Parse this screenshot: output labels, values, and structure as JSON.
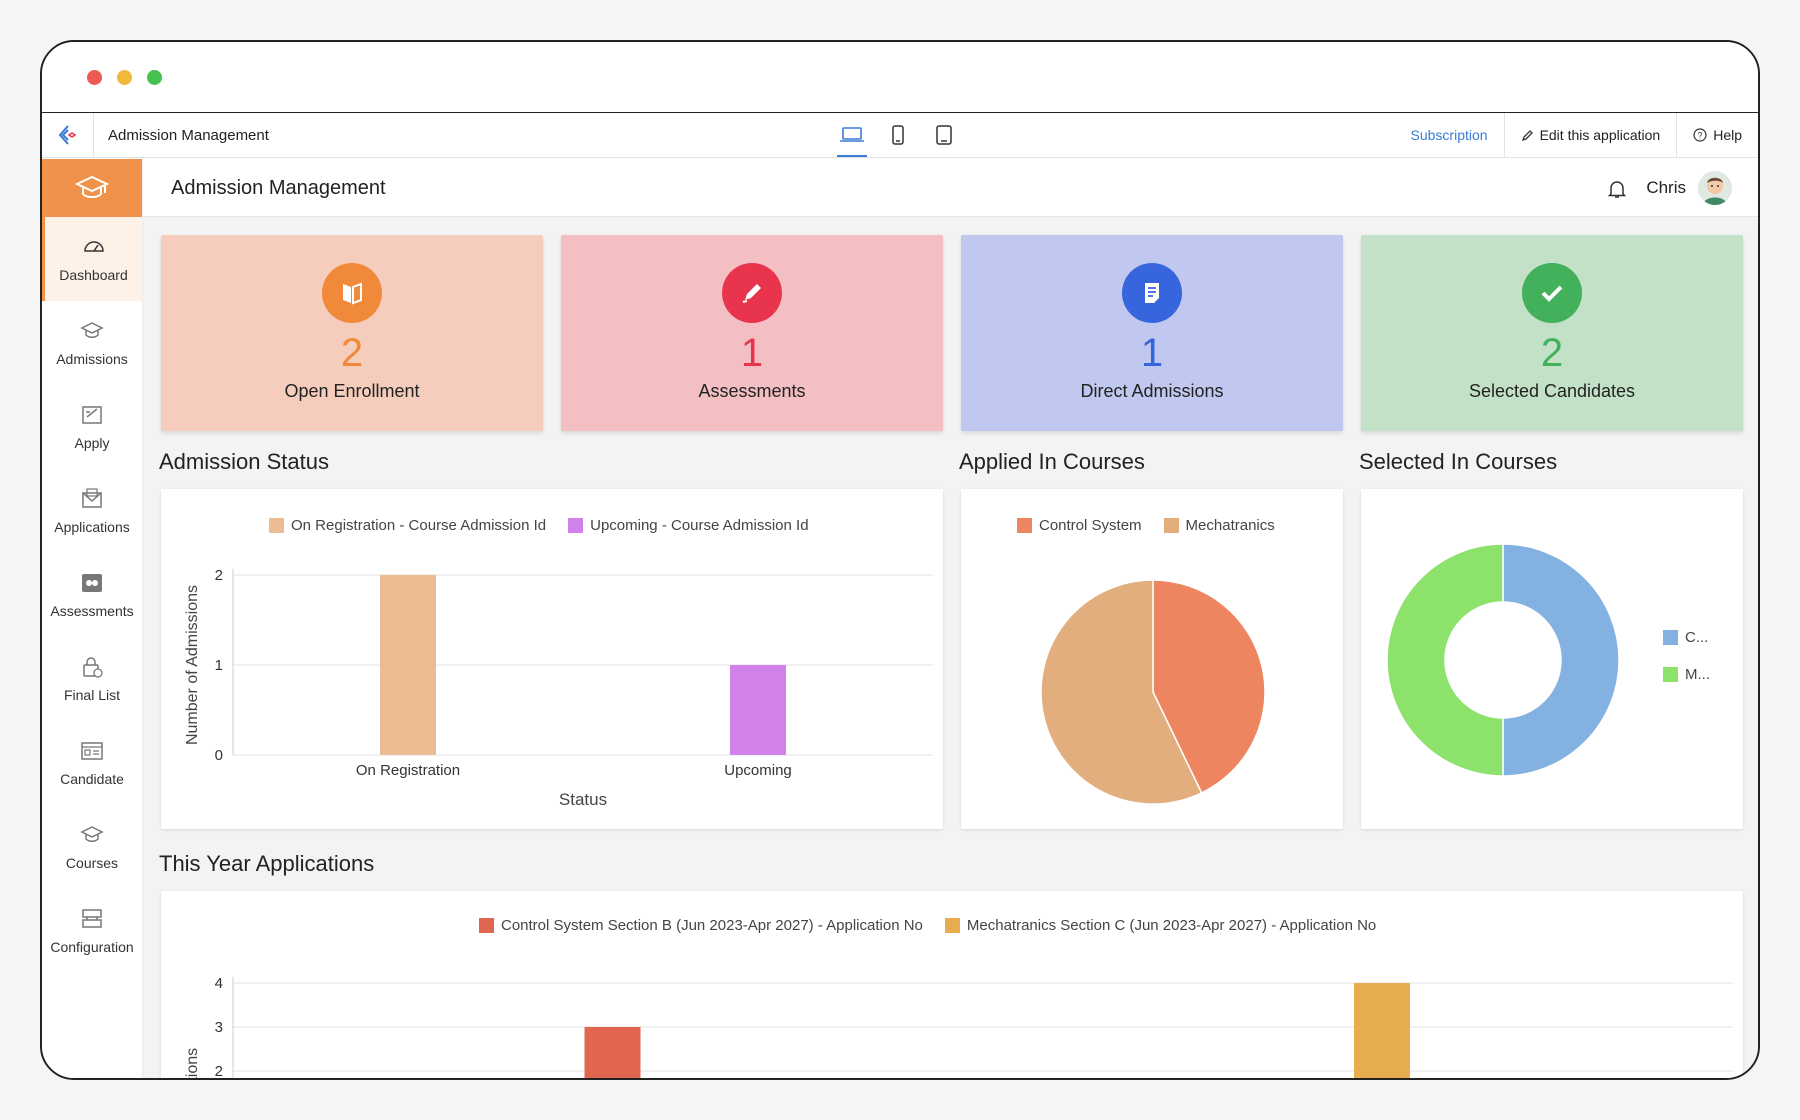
{
  "app": {
    "name": "Admission Management",
    "devices": [
      "laptop-icon",
      "phone-icon",
      "tablet-icon"
    ],
    "links": {
      "subscription": "Subscription",
      "edit": "Edit this application",
      "help": "Help"
    }
  },
  "header": {
    "title": "Admission Management",
    "user": "Chris"
  },
  "sidebar": {
    "items": [
      {
        "label": "Dashboard",
        "icon": "dashboard-icon",
        "active": true
      },
      {
        "label": "Admissions",
        "icon": "graduation-cap-icon"
      },
      {
        "label": "Apply",
        "icon": "apply-form-icon"
      },
      {
        "label": "Applications",
        "icon": "envelope-icon"
      },
      {
        "label": "Assessments",
        "icon": "assessments-icon"
      },
      {
        "label": "Final List",
        "icon": "lock-list-icon"
      },
      {
        "label": "Candidate",
        "icon": "candidate-card-icon"
      },
      {
        "label": "Courses",
        "icon": "courses-cap-icon"
      },
      {
        "label": "Configuration",
        "icon": "configuration-icon"
      }
    ]
  },
  "stats": [
    {
      "value": "2",
      "label": "Open Enrollment",
      "bg": "#f6cdbd",
      "accent": "#f08a3a",
      "icon": "book-open-icon"
    },
    {
      "value": "1",
      "label": "Assessments",
      "bg": "#f4bfc3",
      "accent": "#e8344d",
      "icon": "pen-icon"
    },
    {
      "value": "1",
      "label": "Direct Admissions",
      "bg": "#c0c8ef",
      "accent": "#3665dd",
      "icon": "document-icon"
    },
    {
      "value": "2",
      "label": "Selected Candidates",
      "bg": "#c3e1c6",
      "accent": "#43b05c",
      "icon": "check-icon"
    }
  ],
  "sections": {
    "admission_status": "Admission Status",
    "applied_courses": "Applied In Courses",
    "selected_courses": "Selected In Courses",
    "year_applications": "This Year Applications"
  },
  "chart_data": [
    {
      "type": "bar",
      "title": "Admission Status",
      "xlabel": "Status",
      "ylabel": "Number of Admissions",
      "categories": [
        "On Registration",
        "Upcoming"
      ],
      "ylim": [
        0,
        2
      ],
      "yticks": [
        "0",
        "1",
        "2"
      ],
      "series": [
        {
          "name": "On Registration - Course Admission Id",
          "color": "#ecbd92",
          "values": [
            2,
            null
          ]
        },
        {
          "name": "Upcoming - Course Admission Id",
          "color": "#d182e8",
          "values": [
            null,
            1
          ]
        }
      ]
    },
    {
      "type": "pie",
      "title": "Applied In Courses",
      "series": [
        {
          "name": "Control System",
          "color": "#ec8560",
          "value": 3
        },
        {
          "name": "Mechatranics",
          "color": "#e3ae7d",
          "value": 4
        }
      ]
    },
    {
      "type": "pie",
      "title": "Selected In Courses",
      "donut": true,
      "series": [
        {
          "name": "C...",
          "color": "#82b1e2",
          "value": 1
        },
        {
          "name": "M...",
          "color": "#8ce26a",
          "value": 1
        }
      ]
    },
    {
      "type": "bar",
      "title": "This Year Applications",
      "ylabel": "Applications",
      "yticks": [
        "2",
        "3",
        "4"
      ],
      "series": [
        {
          "name": "Control System Section B (Jun 2023-Apr 2027) - Application No",
          "color": "#e06650",
          "value": 3
        },
        {
          "name": "Mechatranics Section C (Jun 2023-Apr 2027) - Application No",
          "color": "#e6ac4e",
          "value": 4
        }
      ]
    }
  ]
}
